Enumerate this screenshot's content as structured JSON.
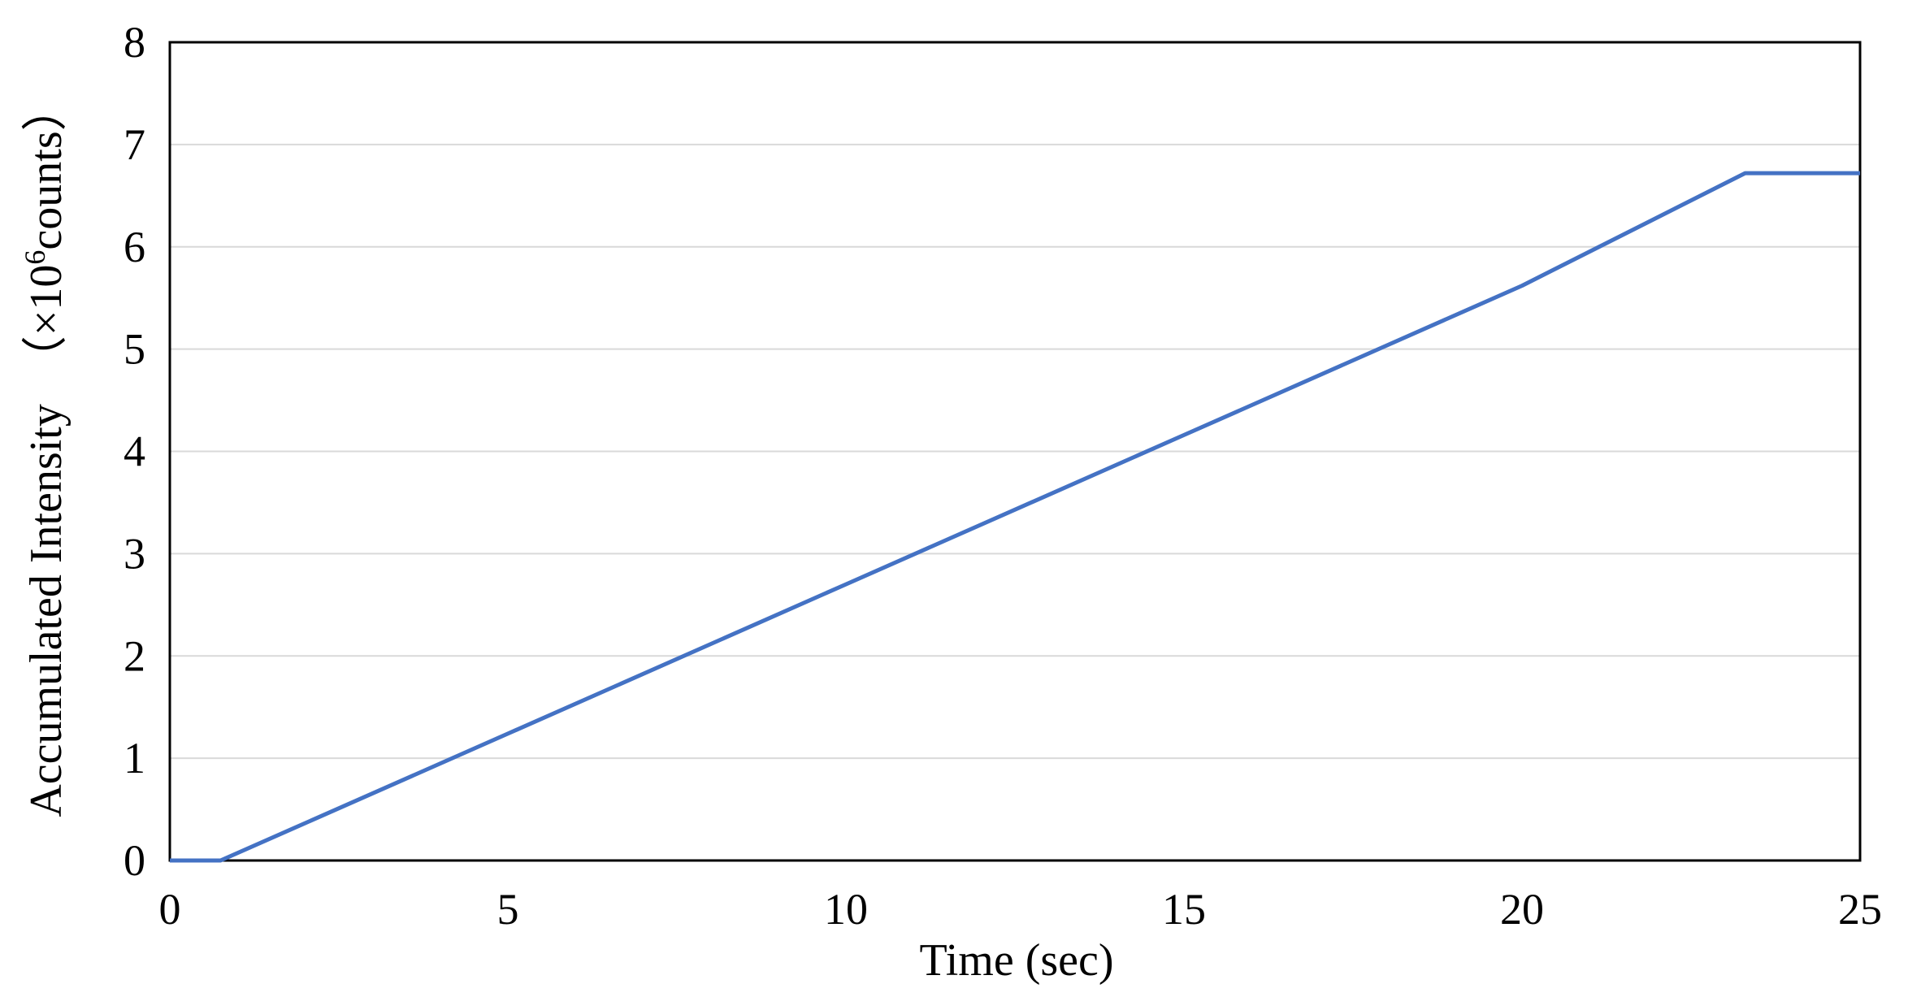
{
  "chart_data": {
    "type": "line",
    "title": "",
    "xlabel": "Time (sec)",
    "ylabel": {
      "prefix": "Accumulated Intensity　（×10",
      "superscript": "6",
      "suffix": "counts）"
    },
    "xlim": [
      0,
      25
    ],
    "ylim": [
      0,
      8
    ],
    "xticks": [
      "0",
      "5",
      "10",
      "15",
      "20",
      "25"
    ],
    "yticks": [
      "0",
      "1",
      "2",
      "3",
      "4",
      "5",
      "6",
      "7",
      "8"
    ],
    "grid": "horizontal",
    "legend": "none",
    "series": [
      {
        "color": "#4472c4",
        "x": [
          0,
          0.75,
          5,
          10,
          15,
          20,
          23.3,
          25
        ],
        "y": [
          0,
          0,
          1.24,
          2.7,
          4.16,
          5.62,
          6.72,
          6.72
        ]
      }
    ]
  }
}
